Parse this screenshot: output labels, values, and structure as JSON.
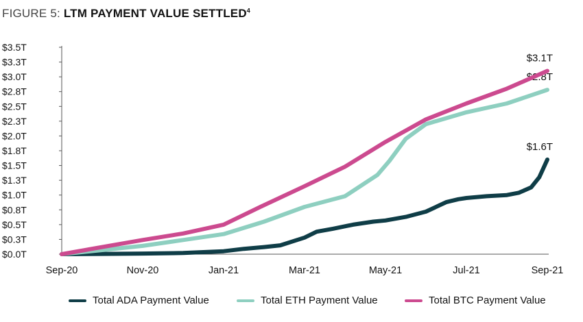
{
  "figure_label": "FIGURE 5: ",
  "figure_title": "LTM PAYMENT VALUE SETTLED",
  "figure_footnote": "4",
  "chart_data": {
    "type": "line",
    "xlabel": "",
    "ylabel": "",
    "x_ticks": [
      "Sep-20",
      "Nov-20",
      "Jan-21",
      "Mar-21",
      "May-21",
      "Jul-21",
      "Sep-21"
    ],
    "y_ticks": [
      "$0.0T",
      "$0.3T",
      "$0.5T",
      "$0.8T",
      "$1.0T",
      "$1.3T",
      "$1.5T",
      "$1.8T",
      "$2.0T",
      "$2.3T",
      "$2.5T",
      "$2.8T",
      "$3.0T",
      "$3.3T",
      "$3.5T"
    ],
    "ylim": [
      0,
      3.5
    ],
    "x_unit": "months since Sep-20",
    "xlim": [
      0,
      12
    ],
    "grid": false,
    "legend_position": "bottom",
    "series": [
      {
        "name": "Total ADA Payment Value",
        "color": "#0f3d47",
        "end_label": "$1.6T",
        "x": [
          0,
          1,
          2,
          3,
          4,
          4.5,
          5,
          5.4,
          6,
          6.3,
          6.7,
          7.2,
          7.7,
          8,
          8.5,
          9,
          9.5,
          9.8,
          10,
          10.5,
          11,
          11.3,
          11.6,
          11.8,
          11.9,
          12
        ],
        "y": [
          0,
          0.005,
          0.01,
          0.02,
          0.05,
          0.09,
          0.12,
          0.15,
          0.28,
          0.38,
          0.43,
          0.5,
          0.55,
          0.57,
          0.63,
          0.72,
          0.88,
          0.93,
          0.95,
          0.98,
          1.0,
          1.04,
          1.13,
          1.3,
          1.45,
          1.6
        ]
      },
      {
        "name": "Total ETH Payment Value",
        "color": "#8ecfc0",
        "end_label": "$2.8T",
        "x": [
          0,
          1,
          2,
          3,
          4,
          5,
          6,
          7,
          7.6,
          7.8,
          8.1,
          8.5,
          9,
          10,
          11,
          12
        ],
        "y": [
          0,
          0.07,
          0.14,
          0.24,
          0.34,
          0.55,
          0.8,
          0.98,
          1.25,
          1.34,
          1.58,
          1.95,
          2.2,
          2.4,
          2.55,
          2.78
        ]
      },
      {
        "name": "Total BTC Payment Value",
        "color": "#cc4a8f",
        "end_label": "$3.1T",
        "x": [
          0,
          1,
          2,
          3,
          4,
          5,
          6,
          7,
          8,
          9,
          10,
          11,
          12
        ],
        "y": [
          0,
          0.12,
          0.24,
          0.35,
          0.5,
          0.83,
          1.15,
          1.48,
          1.9,
          2.28,
          2.55,
          2.8,
          3.1
        ]
      }
    ]
  }
}
